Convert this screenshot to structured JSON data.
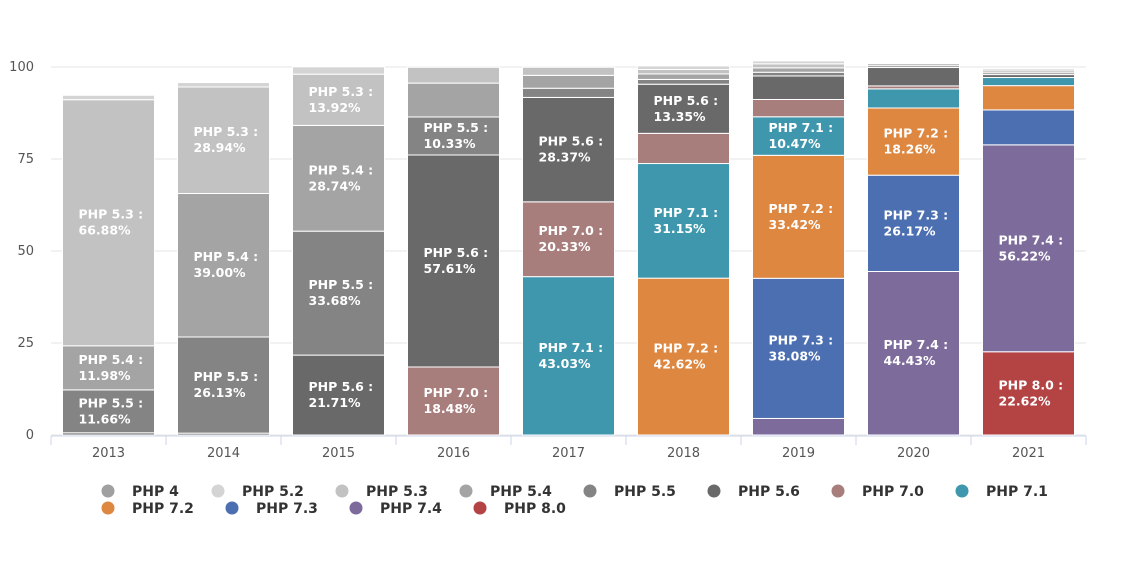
{
  "chart_data": {
    "type": "bar",
    "stacked": true,
    "title": "",
    "xlabel": "",
    "ylabel": "",
    "ylim": [
      0,
      100
    ],
    "yticks": [
      0,
      25,
      50,
      75,
      100
    ],
    "categories": [
      "2013",
      "2014",
      "2015",
      "2016",
      "2017",
      "2018",
      "2019",
      "2020",
      "2021"
    ],
    "legend_position": "bottom",
    "grid": true,
    "series": [
      {
        "name": "PHP 4",
        "color": "#a0a0a0",
        "values": [
          0.0,
          0.0,
          0.0,
          0.0,
          0.0,
          0.2,
          0.2,
          0.0,
          0.0
        ]
      },
      {
        "name": "PHP 5.2",
        "color": "#d4d4d4",
        "values": [
          1.2,
          1.2,
          2.0,
          0.0,
          0.0,
          1.0,
          0.8,
          0.0,
          0.0
        ]
      },
      {
        "name": "PHP 5.3",
        "color": "#c2c2c2",
        "values": [
          66.88,
          28.94,
          13.92,
          4.3,
          2.2,
          1.2,
          1.1,
          0.0,
          0.5
        ]
      },
      {
        "name": "PHP 5.4",
        "color": "#a4a4a4",
        "values": [
          11.98,
          39.0,
          28.74,
          9.2,
          3.5,
          1.5,
          1.2,
          0.5,
          0.5
        ]
      },
      {
        "name": "PHP 5.5",
        "color": "#848484",
        "values": [
          11.66,
          26.13,
          33.68,
          10.33,
          2.5,
          1.3,
          1.0,
          0.5,
          0.5
        ]
      },
      {
        "name": "PHP 5.6",
        "color": "#696969",
        "values": [
          0.6,
          0.5,
          21.71,
          57.61,
          28.37,
          13.35,
          6.4,
          5.0,
          0.8
        ]
      },
      {
        "name": "PHP 7.0",
        "color": "#a87e7c",
        "values": [
          0.0,
          0.0,
          0.0,
          18.48,
          20.33,
          8.2,
          4.7,
          0.8,
          0.0
        ]
      },
      {
        "name": "PHP 7.1",
        "color": "#3e97ad",
        "values": [
          0.0,
          0.0,
          0.0,
          0.0,
          43.03,
          31.15,
          10.47,
          5.2,
          2.2
        ]
      },
      {
        "name": "PHP 7.2",
        "color": "#dd8740",
        "values": [
          0.0,
          0.0,
          0.0,
          0.0,
          0.0,
          42.62,
          33.42,
          18.26,
          6.6
        ]
      },
      {
        "name": "PHP 7.3",
        "color": "#4c6fb1",
        "values": [
          0.0,
          0.0,
          0.0,
          0.0,
          0.0,
          0.0,
          38.08,
          26.17,
          9.5
        ]
      },
      {
        "name": "PHP 7.4",
        "color": "#7d6b9c",
        "values": [
          0.0,
          0.0,
          0.0,
          0.0,
          0.0,
          0.0,
          4.5,
          44.43,
          56.22
        ]
      },
      {
        "name": "PHP 8.0",
        "color": "#b44344",
        "values": [
          0.0,
          0.0,
          0.0,
          0.0,
          0.0,
          0.0,
          0.0,
          0.0,
          22.62
        ]
      }
    ],
    "data_labels": [
      {
        "category": "2013",
        "series": "PHP 5.3",
        "text": "PHP 5.3 :",
        "value": "66.88%"
      },
      {
        "category": "2013",
        "series": "PHP 5.4",
        "text": "PHP 5.4 :",
        "value": "11.98%"
      },
      {
        "category": "2013",
        "series": "PHP 5.5",
        "text": "PHP 5.5 :",
        "value": "11.66%"
      },
      {
        "category": "2014",
        "series": "PHP 5.3",
        "text": "PHP 5.3 :",
        "value": "28.94%"
      },
      {
        "category": "2014",
        "series": "PHP 5.4",
        "text": "PHP 5.4 :",
        "value": "39.00%"
      },
      {
        "category": "2014",
        "series": "PHP 5.5",
        "text": "PHP 5.5 :",
        "value": "26.13%"
      },
      {
        "category": "2015",
        "series": "PHP 5.3",
        "text": "PHP 5.3 :",
        "value": "13.92%"
      },
      {
        "category": "2015",
        "series": "PHP 5.4",
        "text": "PHP 5.4 :",
        "value": "28.74%"
      },
      {
        "category": "2015",
        "series": "PHP 5.5",
        "text": "PHP 5.5 :",
        "value": "33.68%"
      },
      {
        "category": "2015",
        "series": "PHP 5.6",
        "text": "PHP 5.6 :",
        "value": "21.71%"
      },
      {
        "category": "2016",
        "series": "PHP 5.5",
        "text": "PHP 5.5 :",
        "value": "10.33%"
      },
      {
        "category": "2016",
        "series": "PHP 5.6",
        "text": "PHP 5.6 :",
        "value": "57.61%"
      },
      {
        "category": "2016",
        "series": "PHP 7.0",
        "text": "PHP 7.0 :",
        "value": "18.48%"
      },
      {
        "category": "2017",
        "series": "PHP 5.6",
        "text": "PHP 5.6 :",
        "value": "28.37%"
      },
      {
        "category": "2017",
        "series": "PHP 7.0",
        "text": "PHP 7.0 :",
        "value": "20.33%"
      },
      {
        "category": "2017",
        "series": "PHP 7.1",
        "text": "PHP 7.1 :",
        "value": "43.03%"
      },
      {
        "category": "2018",
        "series": "PHP 5.6",
        "text": "PHP 5.6 :",
        "value": "13.35%"
      },
      {
        "category": "2018",
        "series": "PHP 7.1",
        "text": "PHP 7.1 :",
        "value": "31.15%"
      },
      {
        "category": "2018",
        "series": "PHP 7.2",
        "text": "PHP 7.2 :",
        "value": "42.62%"
      },
      {
        "category": "2019",
        "series": "PHP 7.1",
        "text": "PHP 7.1 :",
        "value": "10.47%"
      },
      {
        "category": "2019",
        "series": "PHP 7.2",
        "text": "PHP 7.2 :",
        "value": "33.42%"
      },
      {
        "category": "2019",
        "series": "PHP 7.3",
        "text": "PHP 7.3 :",
        "value": "38.08%"
      },
      {
        "category": "2020",
        "series": "PHP 7.2",
        "text": "PHP 7.2 :",
        "value": "18.26%"
      },
      {
        "category": "2020",
        "series": "PHP 7.3",
        "text": "PHP 7.3 :",
        "value": "26.17%"
      },
      {
        "category": "2020",
        "series": "PHP 7.4",
        "text": "PHP 7.4 :",
        "value": "44.43%"
      },
      {
        "category": "2021",
        "series": "PHP 7.4",
        "text": "PHP 7.4 :",
        "value": "56.22%"
      },
      {
        "category": "2021",
        "series": "PHP 8.0",
        "text": "PHP 8.0 :",
        "value": "22.62%"
      }
    ]
  }
}
